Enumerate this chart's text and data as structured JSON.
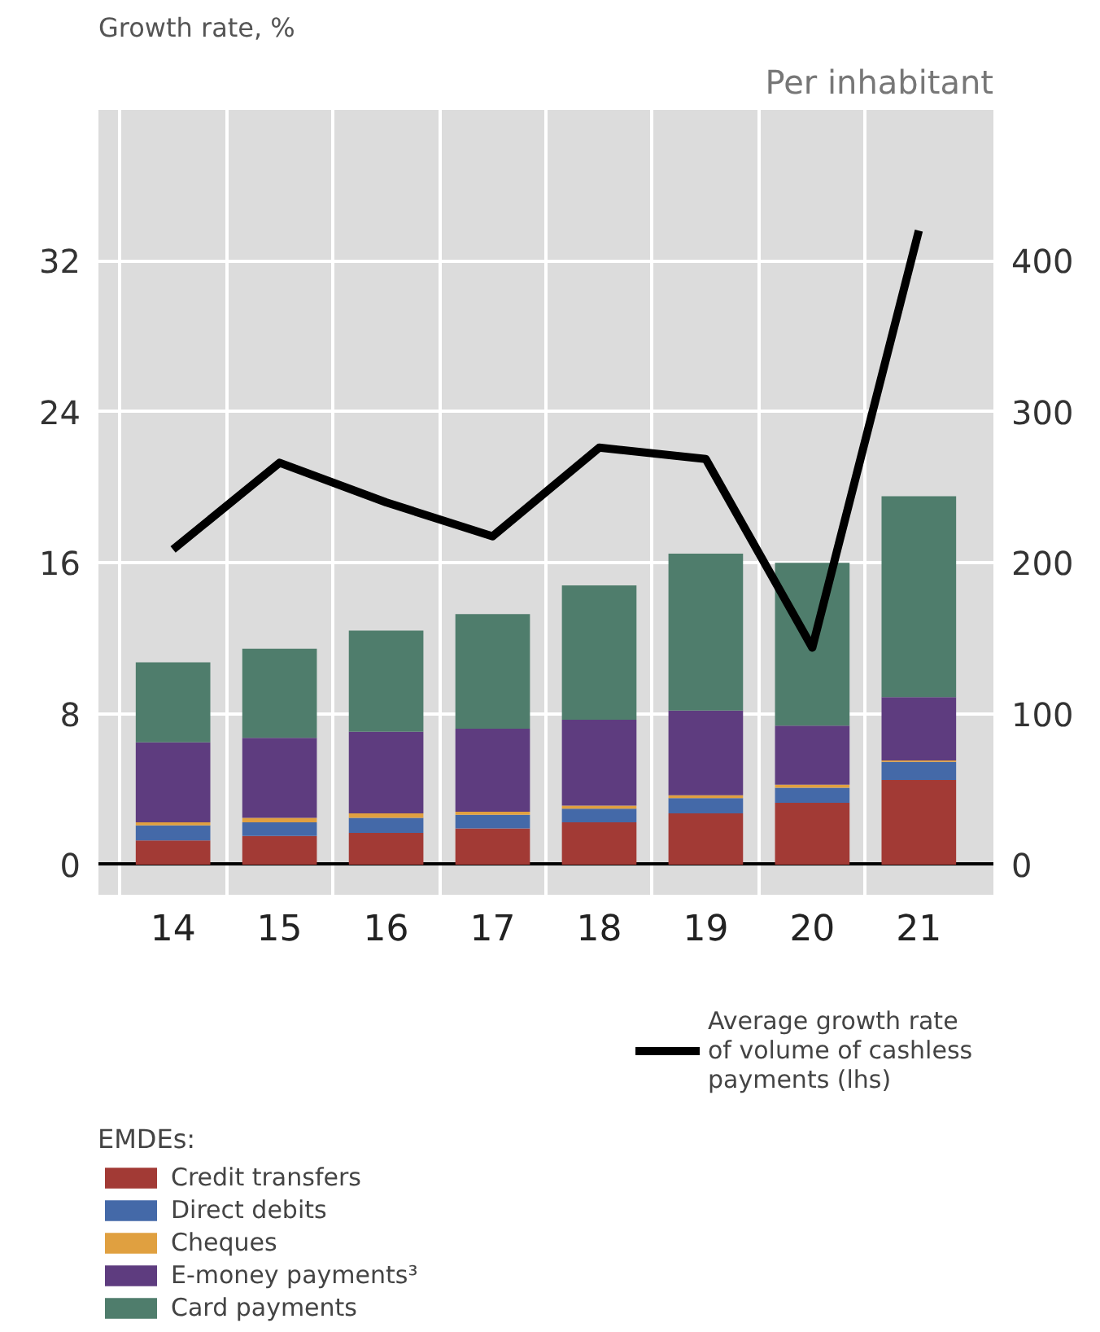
{
  "chart_data": {
    "type": "bar",
    "stacked": true,
    "ylabel": "Growth rate, %",
    "y2label": "Per inhabitant",
    "legend_title": "EMDEs:",
    "categories": [
      "14",
      "15",
      "16",
      "17",
      "18",
      "19",
      "20",
      "21"
    ],
    "ylim": [
      -1.6,
      40
    ],
    "yticks": [
      0,
      8,
      16,
      24,
      32
    ],
    "y2lim": [
      -20,
      500
    ],
    "y2ticks": [
      0,
      100,
      200,
      300,
      400
    ],
    "grid": true,
    "legend": "bottom",
    "series": [
      {
        "name": "Credit transfers",
        "color": "#a23a35",
        "axis": "y2",
        "values": [
          16,
          19,
          21,
          24,
          28,
          34,
          41,
          56
        ]
      },
      {
        "name": "Direct debits",
        "color": "#4469a8",
        "axis": "y2",
        "values": [
          10,
          9,
          10,
          9,
          9,
          10,
          10,
          12
        ]
      },
      {
        "name": "Cheques",
        "color": "#e0a040",
        "axis": "y2",
        "values": [
          2,
          3,
          3,
          2,
          2,
          2,
          2,
          1
        ]
      },
      {
        "name": "E-money payments³",
        "color": "#5e3c7f",
        "axis": "y2",
        "values": [
          53,
          53,
          54,
          55,
          57,
          56,
          39,
          42
        ]
      },
      {
        "name": "Card payments",
        "color": "#4f7d6c",
        "axis": "y2",
        "values": [
          53,
          59,
          67,
          76,
          89,
          104,
          108,
          133
        ]
      },
      {
        "name": "Average growth rate of volume of cashless payments (lhs)",
        "type": "line",
        "color": "#000000",
        "values": [
          16.7,
          21.3,
          19.2,
          17.4,
          22.1,
          21.5,
          11.5,
          33.6
        ]
      }
    ]
  }
}
